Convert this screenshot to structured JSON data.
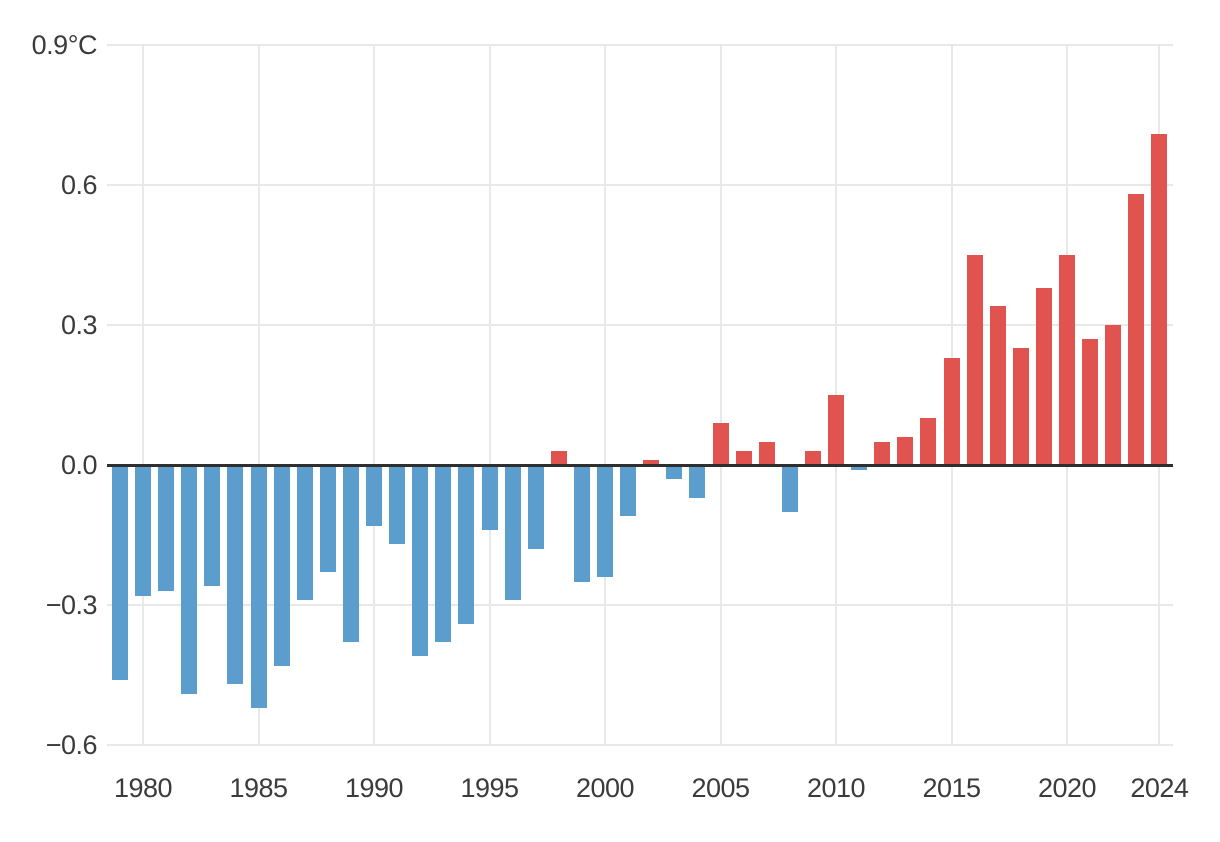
{
  "chart_data": {
    "type": "bar",
    "title": "",
    "description": "Annual global temperature anomaly bar chart, negative years blue, positive years red",
    "unit": "°C",
    "categories": [
      1979,
      1980,
      1981,
      1982,
      1983,
      1984,
      1985,
      1986,
      1987,
      1988,
      1989,
      1990,
      1991,
      1992,
      1993,
      1994,
      1995,
      1996,
      1997,
      1998,
      1999,
      2000,
      2001,
      2002,
      2003,
      2004,
      2005,
      2006,
      2007,
      2008,
      2009,
      2010,
      2011,
      2012,
      2013,
      2014,
      2015,
      2016,
      2017,
      2018,
      2019,
      2020,
      2021,
      2022,
      2023,
      2024
    ],
    "values": [
      -0.46,
      -0.28,
      -0.27,
      -0.49,
      -0.26,
      -0.47,
      -0.52,
      -0.43,
      -0.29,
      -0.23,
      -0.38,
      -0.13,
      -0.17,
      -0.41,
      -0.38,
      -0.34,
      -0.14,
      -0.29,
      -0.18,
      0.03,
      -0.25,
      -0.24,
      -0.11,
      0.01,
      -0.03,
      -0.07,
      0.09,
      0.03,
      0.05,
      -0.1,
      0.03,
      0.15,
      -0.01,
      0.05,
      0.06,
      0.1,
      0.23,
      0.45,
      0.34,
      0.25,
      0.38,
      0.45,
      0.27,
      0.3,
      0.58,
      0.71
    ],
    "ylim": [
      -0.6,
      0.9
    ],
    "grid": true,
    "legend": "none",
    "y_ticks": [
      {
        "value": 0.9,
        "label": "0.9°C"
      },
      {
        "value": 0.6,
        "label": "0.6"
      },
      {
        "value": 0.3,
        "label": "0.3"
      },
      {
        "value": 0.0,
        "label": "0.0"
      },
      {
        "value": -0.3,
        "label": "−0.3"
      },
      {
        "value": -0.6,
        "label": "−0.6"
      }
    ],
    "x_ticks": [
      {
        "year": 1980,
        "label": "1980"
      },
      {
        "year": 1985,
        "label": "1985"
      },
      {
        "year": 1990,
        "label": "1990"
      },
      {
        "year": 1995,
        "label": "1995"
      },
      {
        "year": 2000,
        "label": "2000"
      },
      {
        "year": 2005,
        "label": "2005"
      },
      {
        "year": 2010,
        "label": "2010"
      },
      {
        "year": 2015,
        "label": "2015"
      },
      {
        "year": 2020,
        "label": "2020"
      },
      {
        "year": 2024,
        "label": "2024"
      }
    ],
    "colors": {
      "positive": "#e0534e",
      "negative": "#5b9ecd",
      "zero_line": "#2e2e2e",
      "grid": "#e8e8e8",
      "tick_text": "#3b3b3b",
      "background": "#ffffff"
    }
  }
}
